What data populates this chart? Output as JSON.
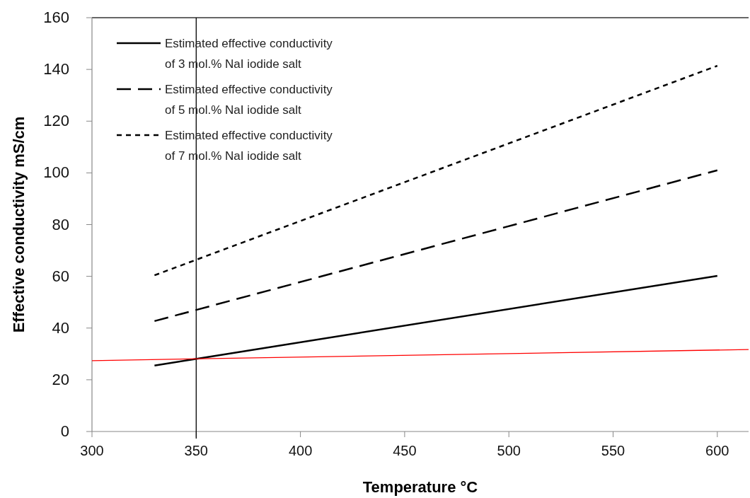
{
  "chart_data": {
    "type": "line",
    "xlabel": "Temperature °C",
    "ylabel": "Effective conductivity mS/cm",
    "xlim": [
      300,
      615
    ],
    "xticks": [
      300,
      350,
      400,
      450,
      500,
      550,
      600
    ],
    "ylim": [
      0,
      160
    ],
    "yticks": [
      0,
      20,
      40,
      60,
      80,
      100,
      120,
      140,
      160
    ],
    "grid": false,
    "legend": "top left",
    "marker": "none",
    "series": [
      {
        "name": "Estimated effective conductivity of 3 mol.% NaI iodide salt",
        "color": "#000000",
        "line_style": "solid",
        "x": [
          330,
          600
        ],
        "values": [
          25.5,
          60.2
        ]
      },
      {
        "name": "Estimated effective conductivity of 5 mol.% NaI iodide salt",
        "color": "#000000",
        "line_style": "dashed",
        "x": [
          330,
          600
        ],
        "values": [
          42.7,
          101
        ]
      },
      {
        "name": "Estimated effective conductivity of 7 mol.% NaI iodide salt",
        "color": "#000000",
        "line_style": "dotted",
        "x": [
          330,
          600
        ],
        "values": [
          60.4,
          141.4
        ]
      },
      {
        "color": "#ff0000",
        "line_style": "solid",
        "x": [
          300,
          615
        ],
        "values": [
          27.4,
          31.7
        ]
      }
    ],
    "ref_lines": [
      {
        "axis": "x",
        "value": 350,
        "color": "#000000"
      }
    ]
  }
}
